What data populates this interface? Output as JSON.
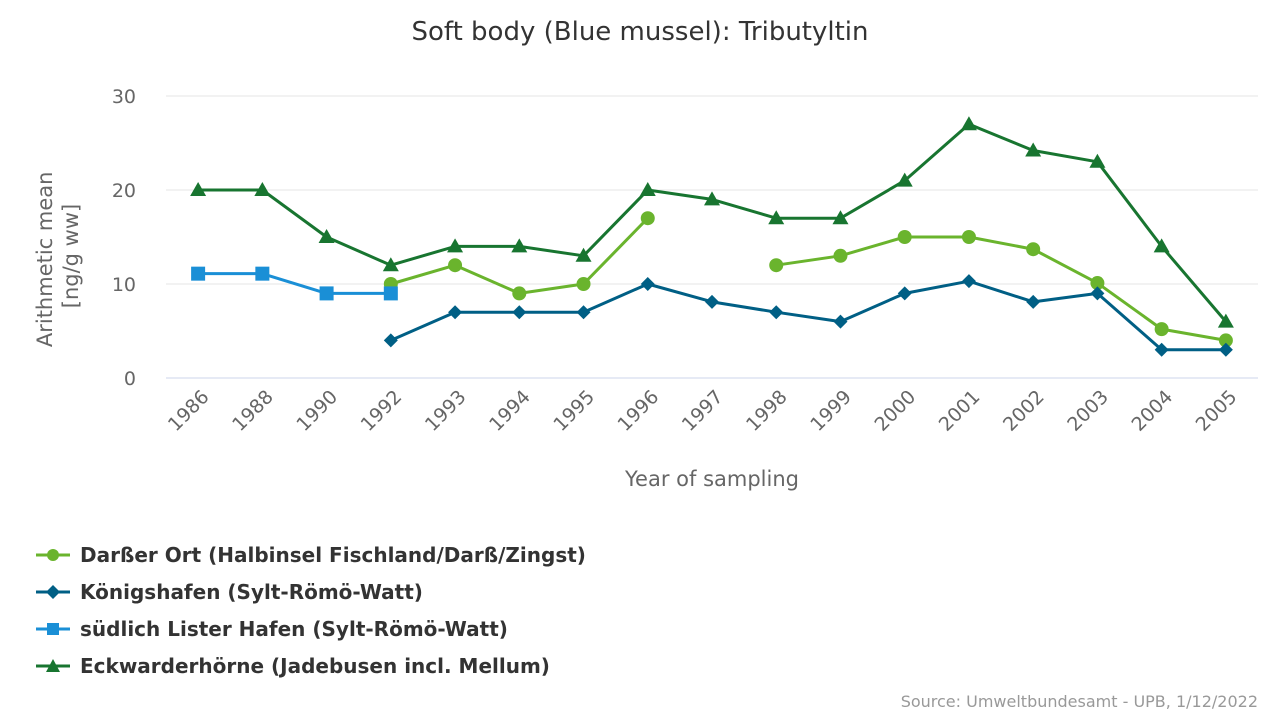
{
  "chart_data": {
    "type": "line",
    "title": "Soft body (Blue mussel): Tributyltin",
    "xlabel": "Year of sampling",
    "ylabel_lines": [
      "Arithmetic mean",
      "[ng/g ww]"
    ],
    "categories": [
      "1986",
      "1988",
      "1990",
      "1992",
      "1993",
      "1994",
      "1995",
      "1996",
      "1997",
      "1998",
      "1999",
      "2000",
      "2001",
      "2002",
      "2003",
      "2004",
      "2005"
    ],
    "ylim": [
      0,
      30
    ],
    "yticks": [
      0,
      10,
      20,
      30
    ],
    "grid": true,
    "legend_position": "bottom-left",
    "series": [
      {
        "name": "Darßer Ort (Halbinsel Fischland/Darß/Zingst)",
        "color": "#6ab42d",
        "marker": "circle",
        "values": [
          null,
          null,
          null,
          10,
          12,
          9,
          10,
          17,
          null,
          12,
          13,
          15,
          15,
          13.7,
          10.1,
          5.2,
          4
        ]
      },
      {
        "name": "Königshafen (Sylt-Römö-Watt)",
        "color": "#005f85",
        "marker": "diamond",
        "values": [
          null,
          null,
          null,
          4,
          7,
          7,
          7,
          10,
          8.1,
          7,
          6,
          9,
          10.3,
          8.1,
          9,
          3,
          3
        ]
      },
      {
        "name": "südlich Lister Hafen (Sylt-Römö-Watt)",
        "color": "#1a8fd6",
        "marker": "square",
        "values": [
          11.1,
          11.1,
          9,
          9,
          null,
          null,
          null,
          null,
          null,
          null,
          null,
          null,
          null,
          null,
          null,
          null,
          null
        ]
      },
      {
        "name": "Eckwarderhörne (Jadebusen incl. Mellum)",
        "color": "#187530",
        "marker": "triangle",
        "values": [
          20,
          20,
          15,
          12,
          14,
          14,
          13,
          20,
          19,
          17,
          17,
          21,
          27,
          24.2,
          23,
          14,
          6
        ]
      }
    ]
  },
  "source": "Source: Umweltbundesamt - UPB, 1/12/2022"
}
